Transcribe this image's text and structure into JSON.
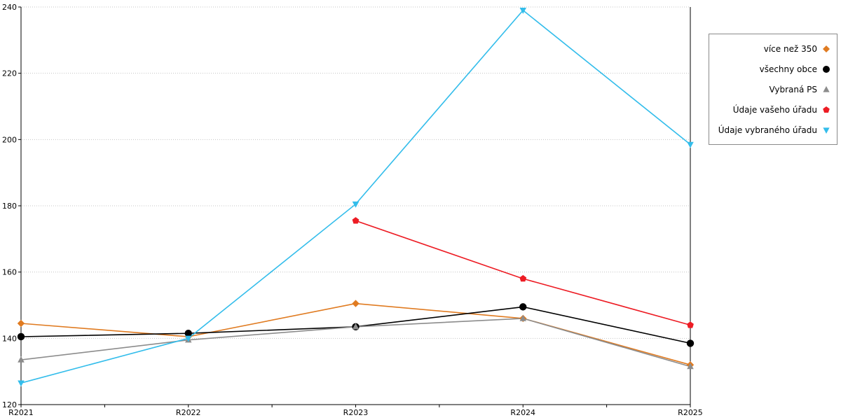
{
  "chart_data": {
    "type": "line",
    "title": "",
    "xlabel": "",
    "ylabel": "",
    "categories": [
      "R2021",
      "R2022",
      "R2023",
      "R2024",
      "R2025"
    ],
    "ylim": [
      120,
      240
    ],
    "yticks": [
      120,
      140,
      160,
      180,
      200,
      220,
      240
    ],
    "grid": "horizontal-dotted",
    "grid_color": "#c4c4c4",
    "axis_color": "#000000",
    "background": "#ffffff",
    "legend_position": "right-outside",
    "series": [
      {
        "name": "více než 350",
        "color": "#e07b21",
        "marker": "diamond",
        "values": [
          144.5,
          140.5,
          150.5,
          146,
          132
        ]
      },
      {
        "name": "všechny obce",
        "color": "#000000",
        "marker": "circle",
        "values": [
          140.5,
          141.5,
          143.5,
          149.5,
          138.5
        ]
      },
      {
        "name": "Vybraná PS",
        "color": "#8c8c8c",
        "marker": "triangle-up",
        "values": [
          133.5,
          139.5,
          143.5,
          146,
          131.5
        ]
      },
      {
        "name": "Údaje vašeho úřadu",
        "color": "#ed1c24",
        "marker": "pentagon",
        "values": [
          null,
          null,
          175.5,
          158,
          144
        ]
      },
      {
        "name": "Údaje vybraného úřadu",
        "color": "#33bdeb",
        "marker": "triangle-down",
        "values": [
          126.5,
          140,
          180.5,
          239,
          198.5
        ]
      }
    ]
  }
}
